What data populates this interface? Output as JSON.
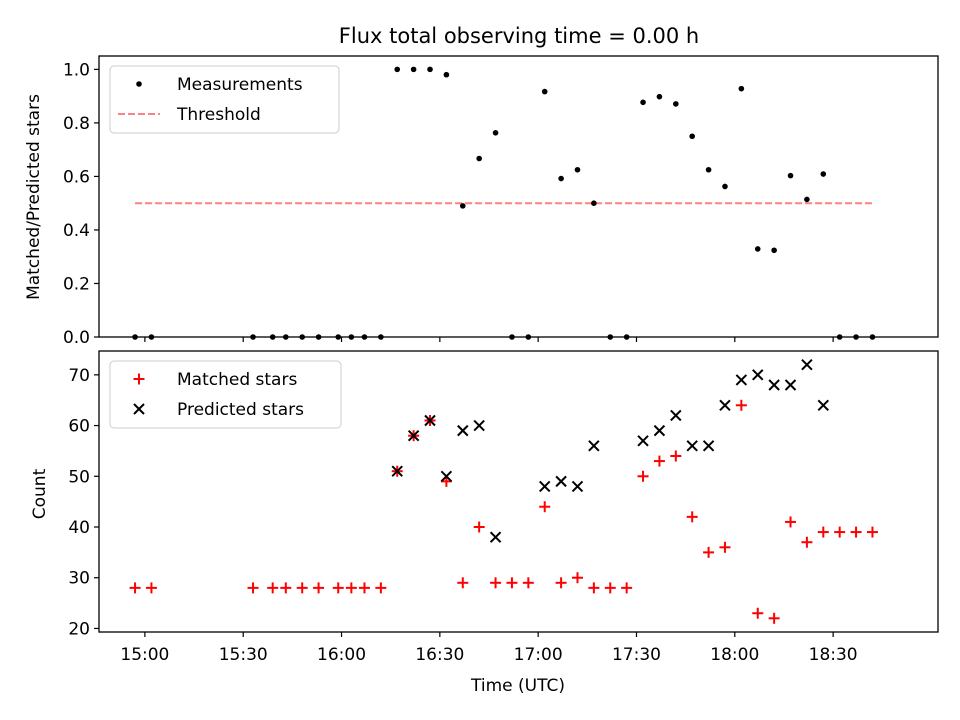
{
  "colors": {
    "measurements": "#000000",
    "threshold": "#ff8080",
    "matched": "#ff0000",
    "predicted": "#000000"
  },
  "chart_data": [
    {
      "type": "scatter",
      "title": "Flux total observing time = 0.00 h",
      "xlabel": "",
      "ylabel": "Matched/Predicted stars",
      "xlim": [
        "14:46",
        "19:02"
      ],
      "ylim": [
        0,
        1.05
      ],
      "yticks": [
        "0.0",
        "0.2",
        "0.4",
        "0.6",
        "0.8",
        "1.0"
      ],
      "legend_position": "top-left",
      "grid": false,
      "series": [
        {
          "name": "Measurements",
          "marker": "dot",
          "points": [
            {
              "x": "14:57",
              "y": 0.0
            },
            {
              "x": "15:02",
              "y": 0.0
            },
            {
              "x": "15:33",
              "y": 0.0
            },
            {
              "x": "15:39",
              "y": 0.0
            },
            {
              "x": "15:43",
              "y": 0.0
            },
            {
              "x": "15:48",
              "y": 0.0
            },
            {
              "x": "15:53",
              "y": 0.0
            },
            {
              "x": "15:59",
              "y": 0.0
            },
            {
              "x": "16:03",
              "y": 0.0
            },
            {
              "x": "16:07",
              "y": 0.0
            },
            {
              "x": "16:12",
              "y": 0.0
            },
            {
              "x": "16:17",
              "y": 1.0
            },
            {
              "x": "16:22",
              "y": 1.0
            },
            {
              "x": "16:27",
              "y": 1.0
            },
            {
              "x": "16:32",
              "y": 0.98
            },
            {
              "x": "16:37",
              "y": 0.49
            },
            {
              "x": "16:42",
              "y": 0.667
            },
            {
              "x": "16:47",
              "y": 0.763
            },
            {
              "x": "16:52",
              "y": 0.0
            },
            {
              "x": "16:57",
              "y": 0.0
            },
            {
              "x": "17:02",
              "y": 0.917
            },
            {
              "x": "17:07",
              "y": 0.592
            },
            {
              "x": "17:12",
              "y": 0.625
            },
            {
              "x": "17:17",
              "y": 0.5
            },
            {
              "x": "17:22",
              "y": 0.0
            },
            {
              "x": "17:27",
              "y": 0.0
            },
            {
              "x": "17:32",
              "y": 0.877
            },
            {
              "x": "17:37",
              "y": 0.898
            },
            {
              "x": "17:42",
              "y": 0.871
            },
            {
              "x": "17:47",
              "y": 0.75
            },
            {
              "x": "17:52",
              "y": 0.625
            },
            {
              "x": "17:57",
              "y": 0.5625
            },
            {
              "x": "18:02",
              "y": 0.928
            },
            {
              "x": "18:07",
              "y": 0.329
            },
            {
              "x": "18:12",
              "y": 0.324
            },
            {
              "x": "18:17",
              "y": 0.603
            },
            {
              "x": "18:22",
              "y": 0.514
            },
            {
              "x": "18:27",
              "y": 0.609
            },
            {
              "x": "18:32",
              "y": 0.0
            },
            {
              "x": "18:37",
              "y": 0.0
            },
            {
              "x": "18:42",
              "y": 0.0
            }
          ]
        },
        {
          "name": "Threshold",
          "style": "dashed-line",
          "points": [
            {
              "x": "14:57",
              "y": 0.5
            },
            {
              "x": "18:42",
              "y": 0.5
            }
          ]
        }
      ]
    },
    {
      "type": "scatter",
      "title": "",
      "xlabel": "Time (UTC)",
      "ylabel": "Count",
      "xlim": [
        "14:46",
        "19:02"
      ],
      "ylim": [
        19.3,
        74.7
      ],
      "xticks": [
        "15:00",
        "15:30",
        "16:00",
        "16:30",
        "17:00",
        "17:30",
        "18:00",
        "18:30"
      ],
      "yticks": [
        "20",
        "30",
        "40",
        "50",
        "60",
        "70"
      ],
      "legend_position": "top-left",
      "grid": false,
      "series": [
        {
          "name": "Matched stars",
          "marker": "plus",
          "points": [
            {
              "x": "14:57",
              "y": 28
            },
            {
              "x": "15:02",
              "y": 28
            },
            {
              "x": "15:33",
              "y": 28
            },
            {
              "x": "15:39",
              "y": 28
            },
            {
              "x": "15:43",
              "y": 28
            },
            {
              "x": "15:48",
              "y": 28
            },
            {
              "x": "15:53",
              "y": 28
            },
            {
              "x": "15:59",
              "y": 28
            },
            {
              "x": "16:03",
              "y": 28
            },
            {
              "x": "16:07",
              "y": 28
            },
            {
              "x": "16:12",
              "y": 28
            },
            {
              "x": "16:17",
              "y": 51
            },
            {
              "x": "16:22",
              "y": 58
            },
            {
              "x": "16:27",
              "y": 61
            },
            {
              "x": "16:32",
              "y": 49
            },
            {
              "x": "16:37",
              "y": 29
            },
            {
              "x": "16:42",
              "y": 40
            },
            {
              "x": "16:47",
              "y": 29
            },
            {
              "x": "16:52",
              "y": 29
            },
            {
              "x": "16:57",
              "y": 29
            },
            {
              "x": "17:02",
              "y": 44
            },
            {
              "x": "17:07",
              "y": 29
            },
            {
              "x": "17:12",
              "y": 30
            },
            {
              "x": "17:17",
              "y": 28
            },
            {
              "x": "17:22",
              "y": 28
            },
            {
              "x": "17:27",
              "y": 28
            },
            {
              "x": "17:32",
              "y": 50
            },
            {
              "x": "17:37",
              "y": 53
            },
            {
              "x": "17:42",
              "y": 54
            },
            {
              "x": "17:47",
              "y": 42
            },
            {
              "x": "17:52",
              "y": 35
            },
            {
              "x": "17:57",
              "y": 36
            },
            {
              "x": "18:02",
              "y": 64
            },
            {
              "x": "18:07",
              "y": 23
            },
            {
              "x": "18:12",
              "y": 22
            },
            {
              "x": "18:17",
              "y": 41
            },
            {
              "x": "18:22",
              "y": 37
            },
            {
              "x": "18:27",
              "y": 39
            },
            {
              "x": "18:32",
              "y": 39
            },
            {
              "x": "18:37",
              "y": 39
            },
            {
              "x": "18:42",
              "y": 39
            }
          ]
        },
        {
          "name": "Predicted stars",
          "marker": "x",
          "points": [
            {
              "x": "16:17",
              "y": 51
            },
            {
              "x": "16:22",
              "y": 58
            },
            {
              "x": "16:27",
              "y": 61
            },
            {
              "x": "16:32",
              "y": 50
            },
            {
              "x": "16:37",
              "y": 59
            },
            {
              "x": "16:42",
              "y": 60
            },
            {
              "x": "16:47",
              "y": 38
            },
            {
              "x": "17:02",
              "y": 48
            },
            {
              "x": "17:07",
              "y": 49
            },
            {
              "x": "17:12",
              "y": 48
            },
            {
              "x": "17:17",
              "y": 56
            },
            {
              "x": "17:32",
              "y": 57
            },
            {
              "x": "17:37",
              "y": 59
            },
            {
              "x": "17:42",
              "y": 62
            },
            {
              "x": "17:47",
              "y": 56
            },
            {
              "x": "17:52",
              "y": 56
            },
            {
              "x": "17:57",
              "y": 64
            },
            {
              "x": "18:02",
              "y": 69
            },
            {
              "x": "18:07",
              "y": 70
            },
            {
              "x": "18:12",
              "y": 68
            },
            {
              "x": "18:17",
              "y": 68
            },
            {
              "x": "18:22",
              "y": 72
            },
            {
              "x": "18:27",
              "y": 64
            }
          ]
        }
      ]
    }
  ]
}
